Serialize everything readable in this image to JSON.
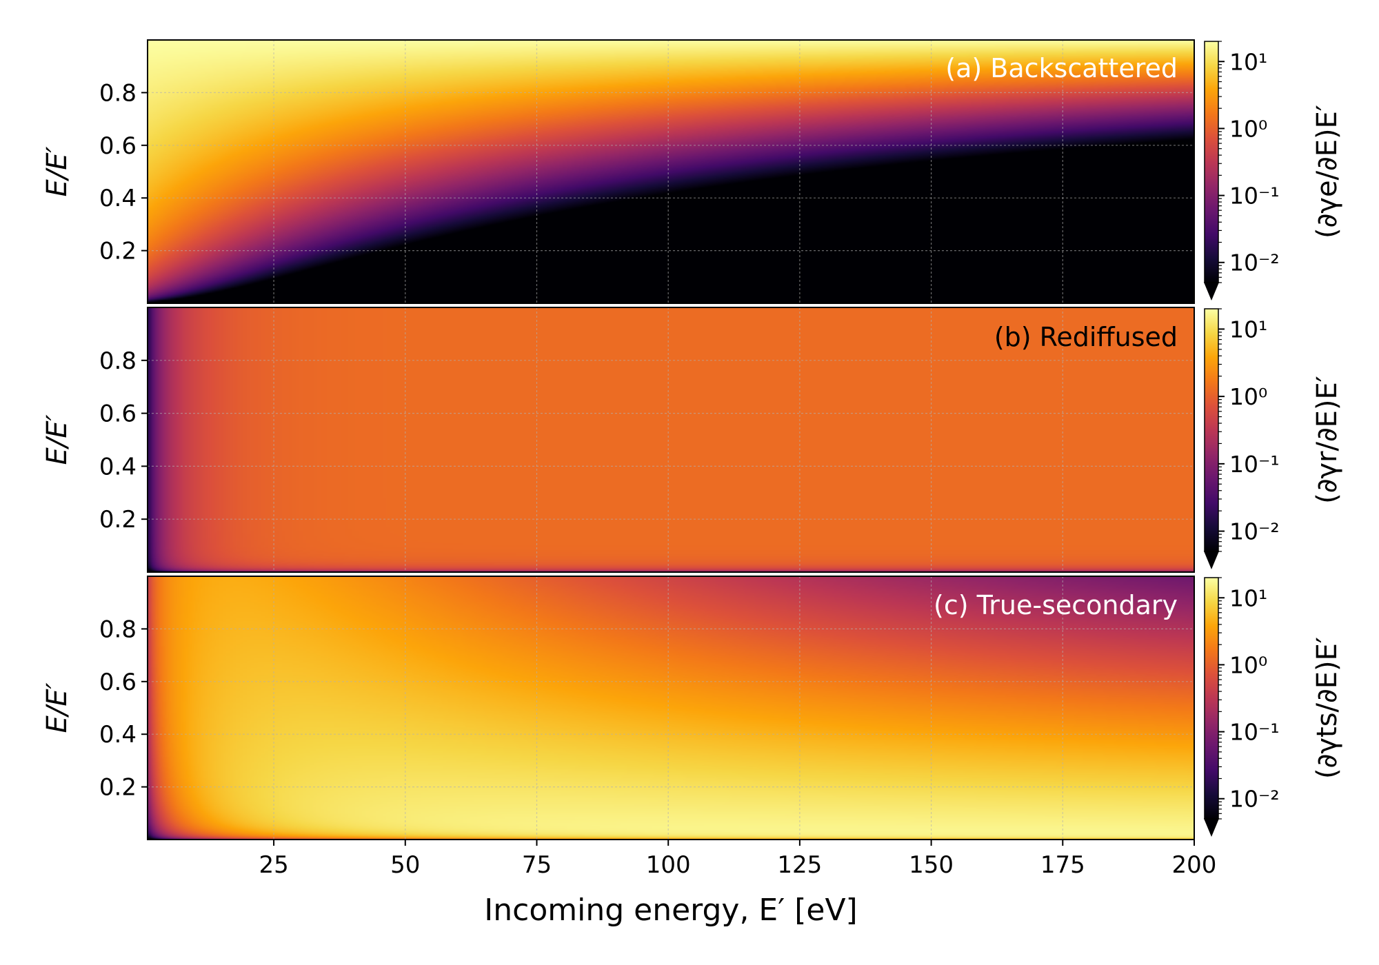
{
  "figure": {
    "xlabel": "Incoming energy, E′ [eV]",
    "x_ticks": [
      "25",
      "50",
      "75",
      "100",
      "125",
      "150",
      "175",
      "200"
    ]
  },
  "chart_data": [
    {
      "type": "heatmap",
      "panel_label": "(a) Backscattered",
      "ylabel": "E/E′",
      "colorbar_label": "(∂γe/∂E)E′",
      "colorbar_ticks": [
        "10¹",
        "10⁰",
        "10⁻¹",
        "10⁻²"
      ],
      "colormap": "inferno",
      "color_scale": "log",
      "xlim": [
        1,
        200
      ],
      "ylim": [
        0,
        1
      ],
      "clim": [
        0.005,
        20
      ],
      "x_ticks": [
        25,
        50,
        75,
        100,
        125,
        150,
        175,
        200
      ],
      "y_ticks": [
        0.2,
        0.4,
        0.6,
        0.8
      ],
      "grid": true,
      "description": "Bright band concentrated near E/E′ = 1, widening toward low incoming energy; dark elsewhere"
    },
    {
      "type": "heatmap",
      "panel_label": "(b) Rediffused",
      "ylabel": "E/E′",
      "colorbar_label": "(∂γr/∂E)E′",
      "colorbar_ticks": [
        "10¹",
        "10⁰",
        "10⁻¹",
        "10⁻²"
      ],
      "colormap": "inferno",
      "color_scale": "log",
      "xlim": [
        1,
        200
      ],
      "ylim": [
        0,
        1
      ],
      "clim": [
        0.005,
        20
      ],
      "x_ticks": [
        25,
        50,
        75,
        100,
        125,
        150,
        175,
        200
      ],
      "y_ticks": [
        0.2,
        0.4,
        0.6,
        0.8
      ],
      "grid": true,
      "description": "Nearly uniform ~1 across the map, falling off only at very low E′ and near E/E′ = 0"
    },
    {
      "type": "heatmap",
      "panel_label": "(c) True-secondary",
      "ylabel": "E/E′",
      "colorbar_label": "(∂γts/∂E)E′",
      "colorbar_ticks": [
        "10¹",
        "10⁰",
        "10⁻¹",
        "10⁻²"
      ],
      "colormap": "inferno",
      "color_scale": "log",
      "xlim": [
        1,
        200
      ],
      "ylim": [
        0,
        1
      ],
      "clim": [
        0.005,
        20
      ],
      "x_ticks": [
        25,
        50,
        75,
        100,
        125,
        150,
        175,
        200
      ],
      "y_ticks": [
        0.2,
        0.4,
        0.6,
        0.8
      ],
      "grid": true,
      "description": "Peaks at low E/E′ for high E′, with the dark cutoff region moving down to E/E′ ≈ 0.5 as E′ increases"
    }
  ]
}
